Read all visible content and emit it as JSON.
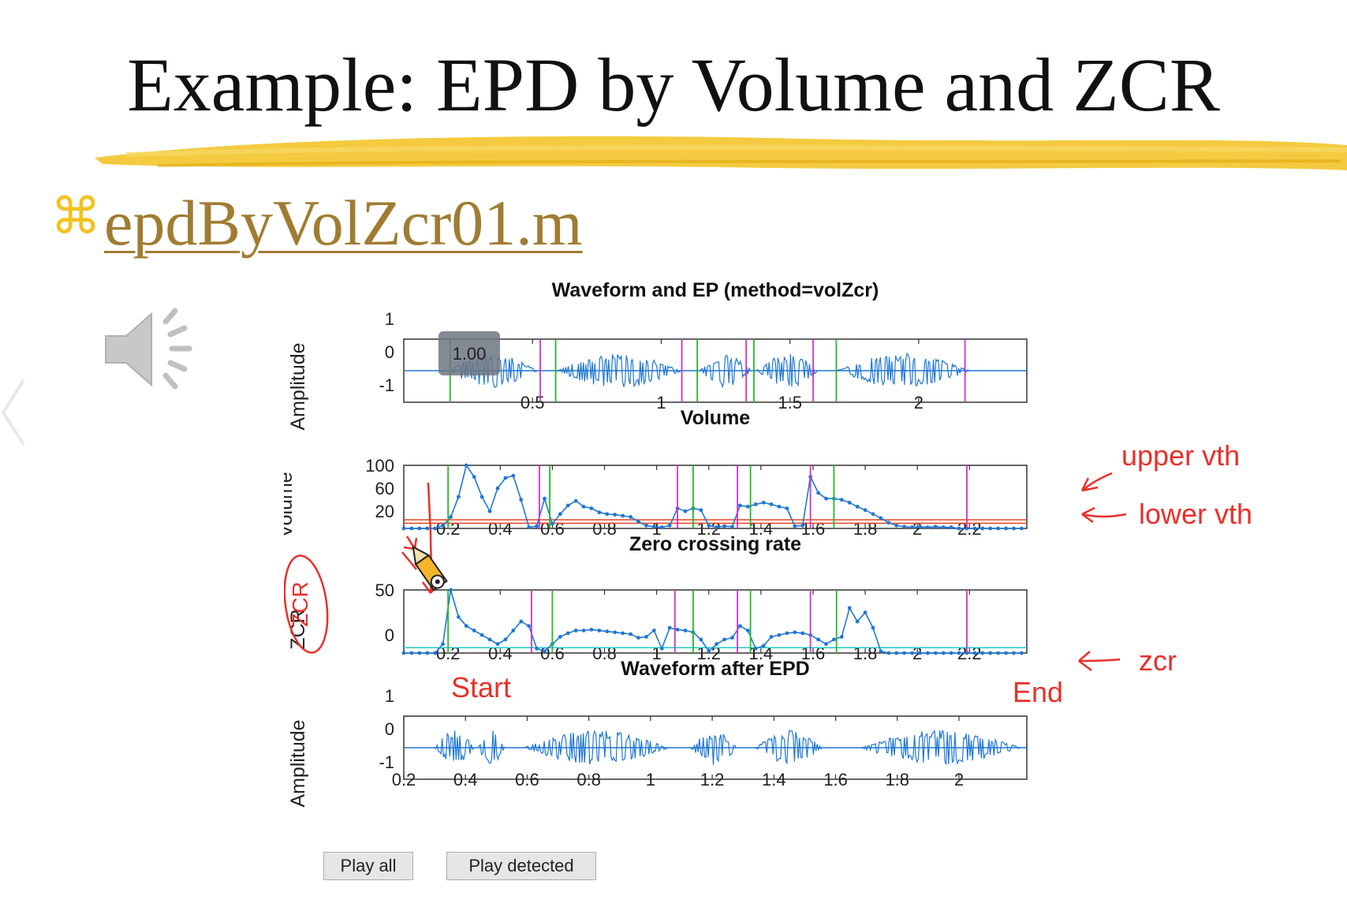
{
  "slide": {
    "title": "Example: EPD by Volume and ZCR",
    "bullet_glyph": "⌘",
    "file_link": "epdByVolZcr01.m",
    "accent_color": "#f2c21e",
    "link_color": "#a07c32",
    "speaker_icon": "speaker-icon",
    "nav_icon": "chevron-left-icon"
  },
  "figure": {
    "playback_badge": "1.00",
    "buttons": {
      "play_all": "Play all",
      "play_detected": "Play detected"
    }
  },
  "chart_data": [
    {
      "type": "line",
      "title": "Waveform and EP (method=volZcr)",
      "ylabel": "Amplitude",
      "x_ticks": [
        {
          "value": 0.5,
          "label": "0.5"
        },
        {
          "value": 1,
          "label": "1"
        },
        {
          "value": 1.5,
          "label": "1.5"
        },
        {
          "value": 2,
          "label": "2"
        }
      ],
      "y_ticks": [
        {
          "value": 1,
          "label": "1"
        },
        {
          "value": 0,
          "label": "0"
        },
        {
          "value": -1,
          "label": "-1"
        }
      ],
      "xlim": [
        0,
        2.42
      ],
      "ylim": [
        -1,
        1
      ],
      "series_color": "#1f77d4",
      "segments": [
        [
          0.17,
          0.52
        ],
        [
          0.59,
          1.08
        ],
        [
          1.15,
          1.35
        ],
        [
          1.37,
          1.61
        ],
        [
          1.68,
          2.2
        ]
      ],
      "start_lines_color": "#22bb22",
      "end_lines_color": "#cc33cc",
      "start_lines": [
        0.18,
        0.59,
        1.14,
        1.36,
        1.68
      ],
      "end_lines": [
        0.53,
        1.08,
        1.33,
        1.59,
        2.18
      ]
    },
    {
      "type": "line",
      "title": "Volume",
      "ylabel": "Volume",
      "x_ticks": [
        {
          "value": 0.2,
          "label": "0.2"
        },
        {
          "value": 0.4,
          "label": "0.4"
        },
        {
          "value": 0.6,
          "label": "0.6"
        },
        {
          "value": 0.8,
          "label": "0.8"
        },
        {
          "value": 1,
          "label": "1"
        },
        {
          "value": 1.2,
          "label": "1.2"
        },
        {
          "value": 1.4,
          "label": "1.4"
        },
        {
          "value": 1.6,
          "label": "1.6"
        },
        {
          "value": 1.8,
          "label": "1.8"
        },
        {
          "value": 2,
          "label": "2"
        },
        {
          "value": 2.2,
          "label": "2.2"
        }
      ],
      "y_ticks": [
        {
          "value": 100,
          "label": "100"
        },
        {
          "value": 60,
          "label": "60"
        },
        {
          "value": 20,
          "label": "20"
        }
      ],
      "xlim": [
        0.03,
        2.42
      ],
      "ylim": [
        -10,
        100
      ],
      "series_color": "#1f77d4",
      "x": [
        0.03,
        0.06,
        0.09,
        0.12,
        0.15,
        0.18,
        0.21,
        0.24,
        0.27,
        0.3,
        0.33,
        0.36,
        0.39,
        0.42,
        0.45,
        0.48,
        0.51,
        0.54,
        0.57,
        0.6,
        0.63,
        0.66,
        0.69,
        0.72,
        0.75,
        0.78,
        0.81,
        0.84,
        0.87,
        0.9,
        0.93,
        0.96,
        0.99,
        1.02,
        1.05,
        1.08,
        1.11,
        1.14,
        1.17,
        1.2,
        1.23,
        1.26,
        1.29,
        1.32,
        1.35,
        1.38,
        1.41,
        1.44,
        1.47,
        1.5,
        1.53,
        1.56,
        1.59,
        1.62,
        1.65,
        1.68,
        1.71,
        1.74,
        1.77,
        1.8,
        1.83,
        1.86,
        1.89,
        1.92,
        1.95,
        1.98,
        2.01,
        2.04,
        2.07,
        2.1,
        2.13,
        2.16,
        2.19,
        2.22,
        2.25,
        2.28,
        2.31,
        2.34,
        2.37,
        2.4
      ],
      "y": [
        -10,
        -10,
        -10,
        -10,
        -10,
        -5,
        10,
        45,
        100,
        80,
        45,
        20,
        60,
        78,
        82,
        40,
        -8,
        -6,
        42,
        -2,
        15,
        30,
        38,
        28,
        25,
        18,
        15,
        14,
        12,
        10,
        2,
        -5,
        -7,
        -8,
        -5,
        25,
        20,
        25,
        22,
        -5,
        -8,
        -6,
        -7,
        30,
        28,
        32,
        35,
        32,
        28,
        25,
        -6,
        -5,
        80,
        52,
        42,
        42,
        40,
        35,
        28,
        22,
        15,
        8,
        0,
        -5,
        -7,
        -8,
        -7,
        -8,
        -7,
        -8,
        -8,
        -10,
        -10,
        -10,
        -10,
        -10,
        -10,
        -10,
        -10,
        -10
      ],
      "thresholds": [
        {
          "value": 5,
          "color": "#e05030"
        },
        {
          "value": -1,
          "color": "#e05030"
        }
      ],
      "start_lines_color": "#22bb22",
      "end_lines_color": "#cc33cc",
      "start_lines": [
        0.2,
        0.59,
        1.14,
        1.36,
        1.68
      ],
      "end_lines": [
        0.55,
        1.08,
        1.31,
        1.59,
        2.19
      ]
    },
    {
      "type": "line",
      "title": "Zero crossing rate",
      "ylabel": "ZCR",
      "x_ticks": [
        {
          "value": 0.2,
          "label": "0.2"
        },
        {
          "value": 0.4,
          "label": "0.4"
        },
        {
          "value": 0.6,
          "label": "0.6"
        },
        {
          "value": 0.8,
          "label": "0.8"
        },
        {
          "value": 1,
          "label": "1"
        },
        {
          "value": 1.2,
          "label": "1.2"
        },
        {
          "value": 1.4,
          "label": "1.4"
        },
        {
          "value": 1.6,
          "label": "1.6"
        },
        {
          "value": 1.8,
          "label": "1.8"
        },
        {
          "value": 2,
          "label": "2"
        },
        {
          "value": 2.2,
          "label": "2.2"
        }
      ],
      "y_ticks": [
        {
          "value": 50,
          "label": "50"
        },
        {
          "value": 0,
          "label": "0"
        }
      ],
      "xlim": [
        0.03,
        2.42
      ],
      "ylim": [
        -20,
        50
      ],
      "series_color": "#1f77d4",
      "x": [
        0.03,
        0.06,
        0.09,
        0.12,
        0.15,
        0.18,
        0.21,
        0.24,
        0.27,
        0.3,
        0.33,
        0.36,
        0.39,
        0.42,
        0.45,
        0.48,
        0.51,
        0.54,
        0.57,
        0.6,
        0.63,
        0.66,
        0.69,
        0.72,
        0.75,
        0.78,
        0.81,
        0.84,
        0.87,
        0.9,
        0.93,
        0.96,
        0.99,
        1.02,
        1.05,
        1.08,
        1.11,
        1.14,
        1.17,
        1.2,
        1.23,
        1.26,
        1.29,
        1.32,
        1.35,
        1.38,
        1.41,
        1.44,
        1.47,
        1.5,
        1.53,
        1.56,
        1.59,
        1.62,
        1.65,
        1.68,
        1.71,
        1.74,
        1.77,
        1.8,
        1.83,
        1.86,
        1.89,
        1.92,
        1.95,
        1.98,
        2.01,
        2.04,
        2.07,
        2.1,
        2.13,
        2.16,
        2.19,
        2.22,
        2.25,
        2.28,
        2.31,
        2.34,
        2.37,
        2.4
      ],
      "y": [
        -20,
        -20,
        -20,
        -20,
        -20,
        -10,
        50,
        20,
        10,
        5,
        0,
        -5,
        -10,
        -5,
        5,
        15,
        10,
        -15,
        -18,
        -10,
        -2,
        2,
        5,
        5,
        6,
        5,
        4,
        3,
        2,
        1,
        -3,
        -2,
        5,
        -15,
        8,
        6,
        5,
        3,
        -5,
        -18,
        -10,
        -5,
        -3,
        10,
        5,
        -15,
        -12,
        -2,
        0,
        2,
        3,
        2,
        0,
        -5,
        -10,
        -5,
        -2,
        30,
        15,
        25,
        8,
        -18,
        -20,
        -20,
        -20,
        -20,
        -20,
        -20,
        -20,
        -20,
        -20,
        -20,
        -20,
        -20,
        -20,
        -20,
        -20,
        -20,
        -20,
        -20
      ],
      "thresholds": [
        {
          "value": -14,
          "color": "#33cccc"
        }
      ],
      "start_lines_color": "#22bb22",
      "end_lines_color": "#cc33cc",
      "start_lines": [
        0.2,
        0.6,
        1.14,
        1.36,
        1.69
      ],
      "end_lines": [
        0.52,
        1.07,
        1.31,
        1.59,
        2.19
      ]
    },
    {
      "type": "line",
      "title": "Waveform after EPD",
      "ylabel": "Amplitude",
      "x_ticks": [
        {
          "value": 0.2,
          "label": "0.2"
        },
        {
          "value": 0.4,
          "label": "0.4"
        },
        {
          "value": 0.6,
          "label": "0.6"
        },
        {
          "value": 0.8,
          "label": "0.8"
        },
        {
          "value": 1,
          "label": "1"
        },
        {
          "value": 1.2,
          "label": "1.2"
        },
        {
          "value": 1.4,
          "label": "1.4"
        },
        {
          "value": 1.6,
          "label": "1.6"
        },
        {
          "value": 1.8,
          "label": "1.8"
        },
        {
          "value": 2,
          "label": "2"
        }
      ],
      "y_ticks": [
        {
          "value": 1,
          "label": "1"
        },
        {
          "value": 0,
          "label": "0"
        },
        {
          "value": -1,
          "label": "-1"
        }
      ],
      "xlim": [
        0.2,
        2.22
      ],
      "ylim": [
        -1,
        1
      ],
      "series_color": "#1f77d4",
      "segments": [
        [
          0.3,
          0.43
        ],
        [
          0.44,
          0.53
        ],
        [
          0.59,
          1.06
        ],
        [
          1.13,
          1.28
        ],
        [
          1.34,
          1.56
        ],
        [
          1.68,
          2.2
        ]
      ]
    }
  ],
  "annotations": {
    "upper_vth": "upper vth",
    "lower_vth": "lower vth",
    "zcr": "zcr",
    "start": "Start",
    "end": "End",
    "zcr_circled": "ZCR",
    "ink_color": "#e8302a"
  }
}
